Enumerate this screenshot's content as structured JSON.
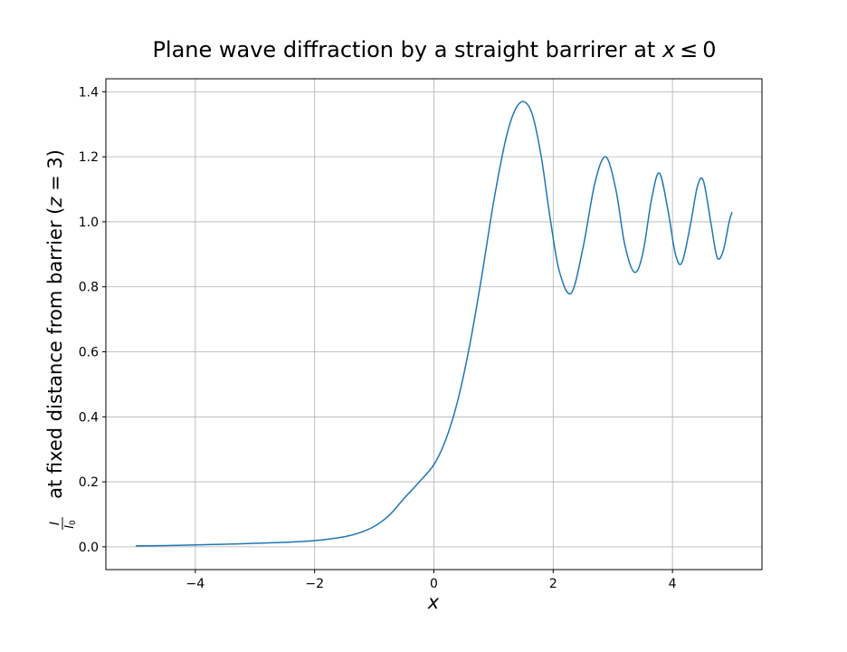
{
  "chart_data": {
    "type": "line",
    "title_prefix": "Plane wave diffraction by a straight barrirer at ",
    "title_math_var": "x",
    "title_math_rel": "≤",
    "title_math_val": "0",
    "xlabel": "x",
    "ylabel_num": "I",
    "ylabel_den": "I",
    "ylabel_den_sub": "0",
    "ylabel_text": " at fixed distance from barrier (",
    "ylabel_math_var": "z",
    "ylabel_math_eq": " = 3",
    "ylabel_close": ")",
    "xlim": [
      -5.5,
      5.5
    ],
    "ylim": [
      -0.07,
      1.44
    ],
    "x_ticks": [
      -4,
      -2,
      0,
      2,
      4
    ],
    "x_tick_labels": [
      "−4",
      "−2",
      "0",
      "2",
      "4"
    ],
    "y_ticks": [
      0.0,
      0.2,
      0.4,
      0.6,
      0.8,
      1.0,
      1.2,
      1.4
    ],
    "y_tick_labels": [
      "0.0",
      "0.2",
      "0.4",
      "0.6",
      "0.8",
      "1.0",
      "1.2",
      "1.4"
    ],
    "grid": true,
    "series": [
      {
        "color": "#1f77b4",
        "x": [
          -5.0,
          -4.5,
          -4.0,
          -3.5,
          -3.0,
          -2.5,
          -2.0,
          -1.5,
          -1.25,
          -1.0,
          -0.75,
          -0.5,
          -0.25,
          0.0,
          0.2,
          0.4,
          0.6,
          0.8,
          1.0,
          1.2,
          1.35,
          1.5,
          1.65,
          1.8,
          1.95,
          2.1,
          2.3,
          2.5,
          2.7,
          2.88,
          3.05,
          3.2,
          3.36,
          3.5,
          3.65,
          3.78,
          3.92,
          4.05,
          4.16,
          4.3,
          4.42,
          4.52,
          4.65,
          4.75,
          4.85,
          4.95,
          5.0
        ],
        "y": [
          0.003,
          0.004,
          0.006,
          0.008,
          0.011,
          0.014,
          0.019,
          0.031,
          0.043,
          0.063,
          0.097,
          0.149,
          0.199,
          0.253,
          0.33,
          0.45,
          0.62,
          0.83,
          1.06,
          1.25,
          1.34,
          1.37,
          1.33,
          1.2,
          1.01,
          0.85,
          0.78,
          0.92,
          1.12,
          1.2,
          1.1,
          0.93,
          0.845,
          0.9,
          1.07,
          1.15,
          1.04,
          0.9,
          0.875,
          0.99,
          1.11,
          1.125,
          0.99,
          0.89,
          0.91,
          1.0,
          1.03
        ]
      }
    ]
  }
}
